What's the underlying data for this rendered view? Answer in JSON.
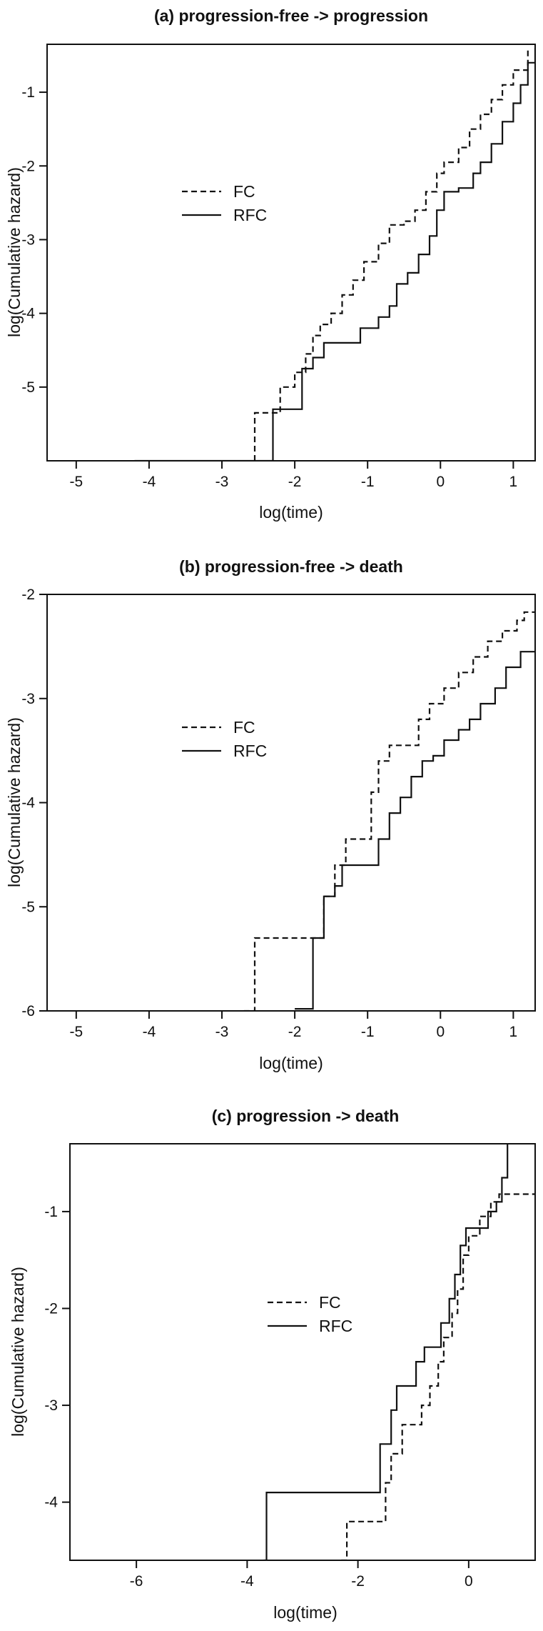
{
  "chart_data": [
    {
      "type": "line",
      "step": true,
      "title": "(a) progression-free -> progression",
      "xlabel": "log(time)",
      "ylabel": "log(Cumulative hazard)",
      "xlim": [
        -5.4,
        1.3
      ],
      "ylim": [
        -6.0,
        -0.35
      ],
      "xticks": [
        -5,
        -4,
        -3,
        -2,
        -1,
        0,
        1
      ],
      "yticks": [
        -5,
        -4,
        -3,
        -2,
        -1
      ],
      "legend": {
        "position": "center-left",
        "entries": [
          {
            "label": "FC",
            "style": "dashed"
          },
          {
            "label": "RFC",
            "style": "solid"
          }
        ]
      },
      "series": [
        {
          "name": "FC",
          "style": "dashed",
          "points": [
            [
              -2.55,
              -6.0
            ],
            [
              -2.55,
              -5.35
            ],
            [
              -2.2,
              -5.0
            ],
            [
              -2.0,
              -4.8
            ],
            [
              -1.85,
              -4.55
            ],
            [
              -1.75,
              -4.3
            ],
            [
              -1.65,
              -4.15
            ],
            [
              -1.5,
              -4.0
            ],
            [
              -1.35,
              -3.75
            ],
            [
              -1.2,
              -3.55
            ],
            [
              -1.05,
              -3.3
            ],
            [
              -0.85,
              -3.05
            ],
            [
              -0.7,
              -2.8
            ],
            [
              -0.5,
              -2.75
            ],
            [
              -0.35,
              -2.6
            ],
            [
              -0.2,
              -2.35
            ],
            [
              -0.05,
              -2.1
            ],
            [
              0.05,
              -1.95
            ],
            [
              0.25,
              -1.75
            ],
            [
              0.4,
              -1.5
            ],
            [
              0.55,
              -1.3
            ],
            [
              0.7,
              -1.1
            ],
            [
              0.85,
              -0.9
            ],
            [
              1.0,
              -0.7
            ],
            [
              1.2,
              -0.4
            ]
          ]
        },
        {
          "name": "RFC",
          "style": "solid",
          "points": [
            [
              -4.2,
              -6.0
            ],
            [
              -2.3,
              -5.3
            ],
            [
              -2.1,
              -5.3
            ],
            [
              -1.9,
              -4.75
            ],
            [
              -1.75,
              -4.6
            ],
            [
              -1.6,
              -4.4
            ],
            [
              -1.3,
              -4.4
            ],
            [
              -1.1,
              -4.2
            ],
            [
              -0.85,
              -4.05
            ],
            [
              -0.7,
              -3.9
            ],
            [
              -0.6,
              -3.6
            ],
            [
              -0.45,
              -3.45
            ],
            [
              -0.3,
              -3.2
            ],
            [
              -0.15,
              -2.95
            ],
            [
              -0.05,
              -2.6
            ],
            [
              0.05,
              -2.35
            ],
            [
              0.25,
              -2.3
            ],
            [
              0.45,
              -2.1
            ],
            [
              0.55,
              -1.95
            ],
            [
              0.7,
              -1.7
            ],
            [
              0.85,
              -1.4
            ],
            [
              1.0,
              -1.15
            ],
            [
              1.1,
              -0.9
            ],
            [
              1.2,
              -0.6
            ],
            [
              1.3,
              -0.4
            ]
          ]
        }
      ]
    },
    {
      "type": "line",
      "step": true,
      "title": "(b) progression-free -> death",
      "xlabel": "log(time)",
      "ylabel": "log(Cumulative hazard)",
      "xlim": [
        -5.4,
        1.3
      ],
      "ylim": [
        -6.0,
        -2.0
      ],
      "xticks": [
        -5,
        -4,
        -3,
        -2,
        -1,
        0,
        1
      ],
      "yticks": [
        -6,
        -5,
        -4,
        -3,
        -2
      ],
      "legend": {
        "position": "center-left",
        "entries": [
          {
            "label": "FC",
            "style": "dashed"
          },
          {
            "label": "RFC",
            "style": "solid"
          }
        ]
      },
      "series": [
        {
          "name": "FC",
          "style": "dashed",
          "points": [
            [
              -2.7,
              -6.0
            ],
            [
              -2.55,
              -5.3
            ],
            [
              -1.75,
              -5.3
            ],
            [
              -1.6,
              -4.9
            ],
            [
              -1.45,
              -4.6
            ],
            [
              -1.3,
              -4.35
            ],
            [
              -1.0,
              -4.35
            ],
            [
              -0.95,
              -3.9
            ],
            [
              -0.85,
              -3.6
            ],
            [
              -0.7,
              -3.45
            ],
            [
              -0.4,
              -3.45
            ],
            [
              -0.3,
              -3.2
            ],
            [
              -0.15,
              -3.05
            ],
            [
              0.05,
              -2.9
            ],
            [
              0.25,
              -2.75
            ],
            [
              0.45,
              -2.6
            ],
            [
              0.65,
              -2.45
            ],
            [
              0.85,
              -2.35
            ],
            [
              1.05,
              -2.25
            ],
            [
              1.15,
              -2.17
            ],
            [
              1.3,
              -2.17
            ]
          ]
        },
        {
          "name": "RFC",
          "style": "solid",
          "points": [
            [
              -2.0,
              -5.98
            ],
            [
              -1.8,
              -5.98
            ],
            [
              -1.75,
              -5.3
            ],
            [
              -1.6,
              -4.9
            ],
            [
              -1.45,
              -4.8
            ],
            [
              -1.35,
              -4.6
            ],
            [
              -1.0,
              -4.6
            ],
            [
              -0.85,
              -4.35
            ],
            [
              -0.7,
              -4.1
            ],
            [
              -0.55,
              -3.95
            ],
            [
              -0.4,
              -3.75
            ],
            [
              -0.25,
              -3.6
            ],
            [
              -0.1,
              -3.55
            ],
            [
              0.05,
              -3.4
            ],
            [
              0.25,
              -3.3
            ],
            [
              0.4,
              -3.2
            ],
            [
              0.55,
              -3.05
            ],
            [
              0.75,
              -2.9
            ],
            [
              0.9,
              -2.7
            ],
            [
              1.1,
              -2.55
            ],
            [
              1.3,
              -2.55
            ]
          ]
        }
      ]
    },
    {
      "type": "line",
      "step": true,
      "title": "(c) progression -> death",
      "xlabel": "log(time)",
      "ylabel": "log(Cumulative hazard)",
      "xlim": [
        -7.2,
        1.2
      ],
      "ylim": [
        -4.6,
        -0.3
      ],
      "xticks": [
        -6,
        -4,
        -2,
        0
      ],
      "yticks": [
        -4,
        -3,
        -2,
        -1
      ],
      "legend": {
        "position": "center",
        "entries": [
          {
            "label": "FC",
            "style": "dashed"
          },
          {
            "label": "RFC",
            "style": "solid"
          }
        ]
      },
      "series": [
        {
          "name": "FC",
          "style": "dashed",
          "points": [
            [
              -2.3,
              -4.6
            ],
            [
              -2.2,
              -4.2
            ],
            [
              -1.6,
              -4.2
            ],
            [
              -1.5,
              -3.8
            ],
            [
              -1.4,
              -3.5
            ],
            [
              -1.2,
              -3.2
            ],
            [
              -0.95,
              -3.2
            ],
            [
              -0.85,
              -3.0
            ],
            [
              -0.7,
              -2.8
            ],
            [
              -0.55,
              -2.55
            ],
            [
              -0.45,
              -2.3
            ],
            [
              -0.3,
              -2.05
            ],
            [
              -0.2,
              -1.8
            ],
            [
              -0.1,
              -1.45
            ],
            [
              0.0,
              -1.25
            ],
            [
              0.2,
              -1.05
            ],
            [
              0.4,
              -0.9
            ],
            [
              0.55,
              -0.82
            ],
            [
              1.2,
              -0.82
            ]
          ]
        },
        {
          "name": "RFC",
          "style": "solid",
          "points": [
            [
              -3.7,
              -4.6
            ],
            [
              -3.65,
              -3.9
            ],
            [
              -1.65,
              -3.9
            ],
            [
              -1.6,
              -3.4
            ],
            [
              -1.4,
              -3.05
            ],
            [
              -1.3,
              -2.8
            ],
            [
              -1.05,
              -2.8
            ],
            [
              -0.95,
              -2.55
            ],
            [
              -0.8,
              -2.4
            ],
            [
              -0.6,
              -2.4
            ],
            [
              -0.5,
              -2.15
            ],
            [
              -0.35,
              -1.9
            ],
            [
              -0.25,
              -1.65
            ],
            [
              -0.15,
              -1.35
            ],
            [
              -0.05,
              -1.17
            ],
            [
              0.2,
              -1.17
            ],
            [
              0.35,
              -1.0
            ],
            [
              0.5,
              -0.9
            ],
            [
              0.6,
              -0.65
            ],
            [
              0.7,
              -0.3
            ]
          ]
        }
      ]
    }
  ]
}
